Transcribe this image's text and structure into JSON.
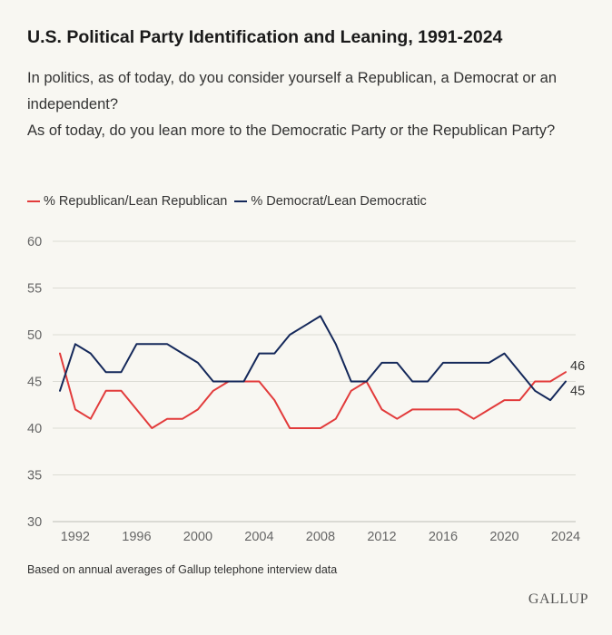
{
  "header": {
    "title": "U.S. Political Party Identification and Leaning, 1991-2024",
    "subtitle_lines": [
      "In politics, as of today, do you consider yourself a Republican, a Democrat or an independent?",
      "As of today, do you lean more to the Democratic Party or the Republican Party?"
    ]
  },
  "footer": {
    "source": "Based on annual averages of Gallup telephone interview data",
    "logo": "GALLUP"
  },
  "chart_data": {
    "type": "line",
    "title": "U.S. Political Party Identification and Leaning, 1991-2024",
    "xlabel": "",
    "ylabel": "",
    "x": [
      1991,
      1992,
      1993,
      1994,
      1995,
      1996,
      1997,
      1998,
      1999,
      2000,
      2001,
      2002,
      2003,
      2004,
      2005,
      2006,
      2007,
      2008,
      2009,
      2010,
      2011,
      2012,
      2013,
      2014,
      2015,
      2016,
      2017,
      2018,
      2019,
      2020,
      2021,
      2022,
      2023,
      2024
    ],
    "series": [
      {
        "name": "% Republican/Lean Republican",
        "color": "#e23b3b",
        "values": [
          48,
          42,
          41,
          44,
          44,
          42,
          40,
          41,
          41,
          42,
          44,
          45,
          45,
          45,
          43,
          40,
          40,
          40,
          41,
          44,
          45,
          42,
          41,
          42,
          42,
          42,
          42,
          41,
          42,
          43,
          43,
          45,
          45,
          46
        ],
        "end_label": "46"
      },
      {
        "name": "% Democrat/Lean Democratic",
        "color": "#14285a",
        "values": [
          44,
          49,
          48,
          46,
          46,
          49,
          49,
          49,
          48,
          47,
          45,
          45,
          45,
          48,
          48,
          50,
          51,
          52,
          49,
          45,
          45,
          47,
          47,
          45,
          45,
          47,
          47,
          47,
          47,
          48,
          46,
          44,
          43,
          45
        ],
        "end_label": "45"
      }
    ],
    "ylim": [
      30,
      60
    ],
    "yticks": [
      30,
      35,
      40,
      45,
      50,
      55,
      60
    ],
    "xticks": [
      1992,
      1996,
      2000,
      2004,
      2008,
      2012,
      2016,
      2020,
      2024
    ],
    "grid": true,
    "legend": "top-left"
  }
}
